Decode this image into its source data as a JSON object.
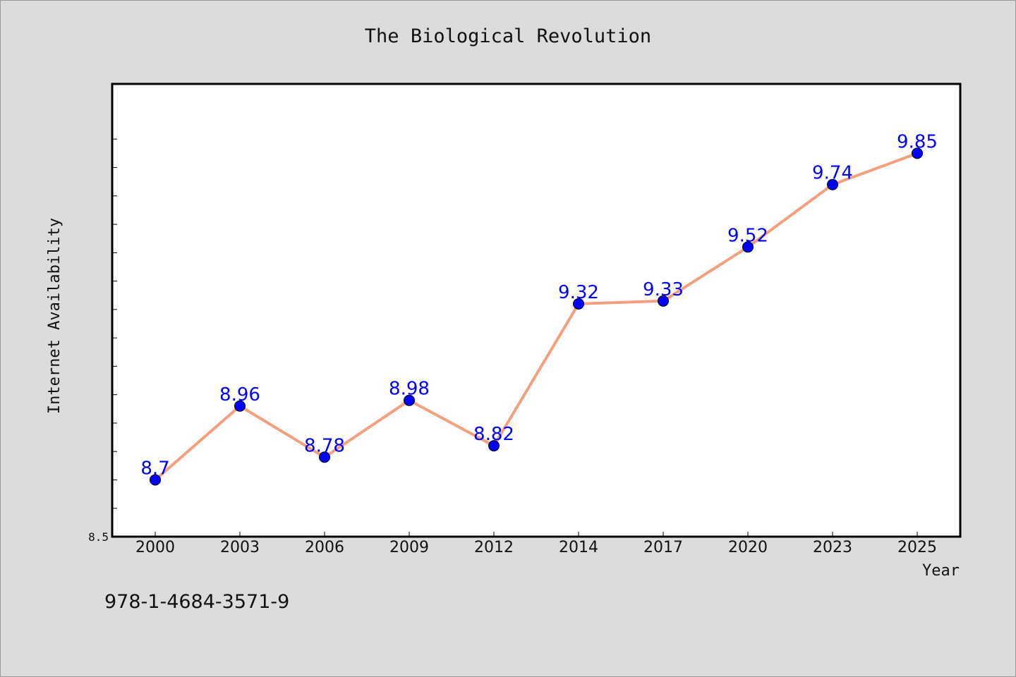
{
  "chart_data": {
    "type": "line",
    "title": "The Biological Revolution",
    "xlabel": "Year",
    "ylabel": "Internet Availability",
    "categories": [
      "2000",
      "2003",
      "2006",
      "2009",
      "2012",
      "2014",
      "2017",
      "2020",
      "2023",
      "2025"
    ],
    "series": [
      {
        "values": [
          8.7,
          8.96,
          8.78,
          8.98,
          8.82,
          9.32,
          9.33,
          9.52,
          9.74,
          9.85
        ],
        "data_labels": [
          "8.7",
          "8.96",
          "8.78",
          "8.98",
          "8.82",
          "9.32",
          "9.33",
          "9.52",
          "9.74",
          "9.85"
        ]
      }
    ],
    "ylim": [
      8.5,
      10.0
    ],
    "y_tick_labels": [
      "8.5"
    ],
    "grid": false,
    "legend": "none",
    "colors": {
      "line": "#f4a07f",
      "marker": "#0000ff",
      "data_label": "#0000ff",
      "plot_background": "#ffffff",
      "figure_background": "#dcdcdc"
    }
  },
  "footnote": "978-1-4684-3571-9"
}
